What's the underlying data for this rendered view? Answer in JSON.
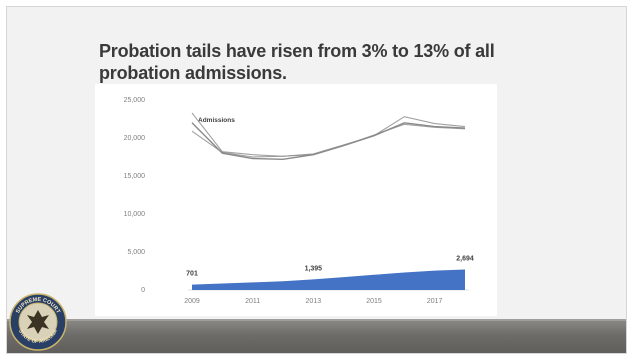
{
  "slide": {
    "title": "Probation tails have risen from 3% to 13% of all probation admissions.",
    "seal_text": [
      "SUPREME COURT",
      "STATE OF ARIZONA"
    ]
  },
  "colors": {
    "line": "#8a8a8a",
    "area": "#4472c4",
    "axis_text": "#7f7f7f",
    "label_text": "#404040"
  },
  "chart_data": {
    "type": "line",
    "x": [
      2009,
      2010,
      2011,
      2012,
      2013,
      2014,
      2015,
      2016,
      2017,
      2018
    ],
    "x_tick_labels": [
      "2009",
      "2011",
      "2013",
      "2015",
      "2017"
    ],
    "y_tick_labels": [
      "0",
      "5,000",
      "10,000",
      "15,000",
      "20,000",
      "25,000"
    ],
    "ylim": [
      0,
      25000
    ],
    "series": [
      {
        "name": "Admissions",
        "values": [
          22000,
          18000,
          17300,
          17200,
          17800,
          19000,
          20300,
          22000,
          21500,
          21300
        ]
      },
      {
        "name": "",
        "values": [
          23300,
          18200,
          17800,
          17600,
          17900,
          19100,
          20300,
          22800,
          21900,
          21500
        ]
      },
      {
        "name": "",
        "values": [
          20900,
          18100,
          17500,
          17600,
          17800,
          19000,
          20400,
          21800,
          21400,
          21200
        ]
      }
    ],
    "area_series": {
      "values": [
        701,
        850,
        1000,
        1150,
        1395,
        1700,
        2000,
        2300,
        2550,
        2694
      ],
      "labels": [
        {
          "index": 0,
          "text": "701"
        },
        {
          "index": 4,
          "text": "1,395"
        },
        {
          "index": 9,
          "text": "2,694"
        }
      ]
    }
  }
}
